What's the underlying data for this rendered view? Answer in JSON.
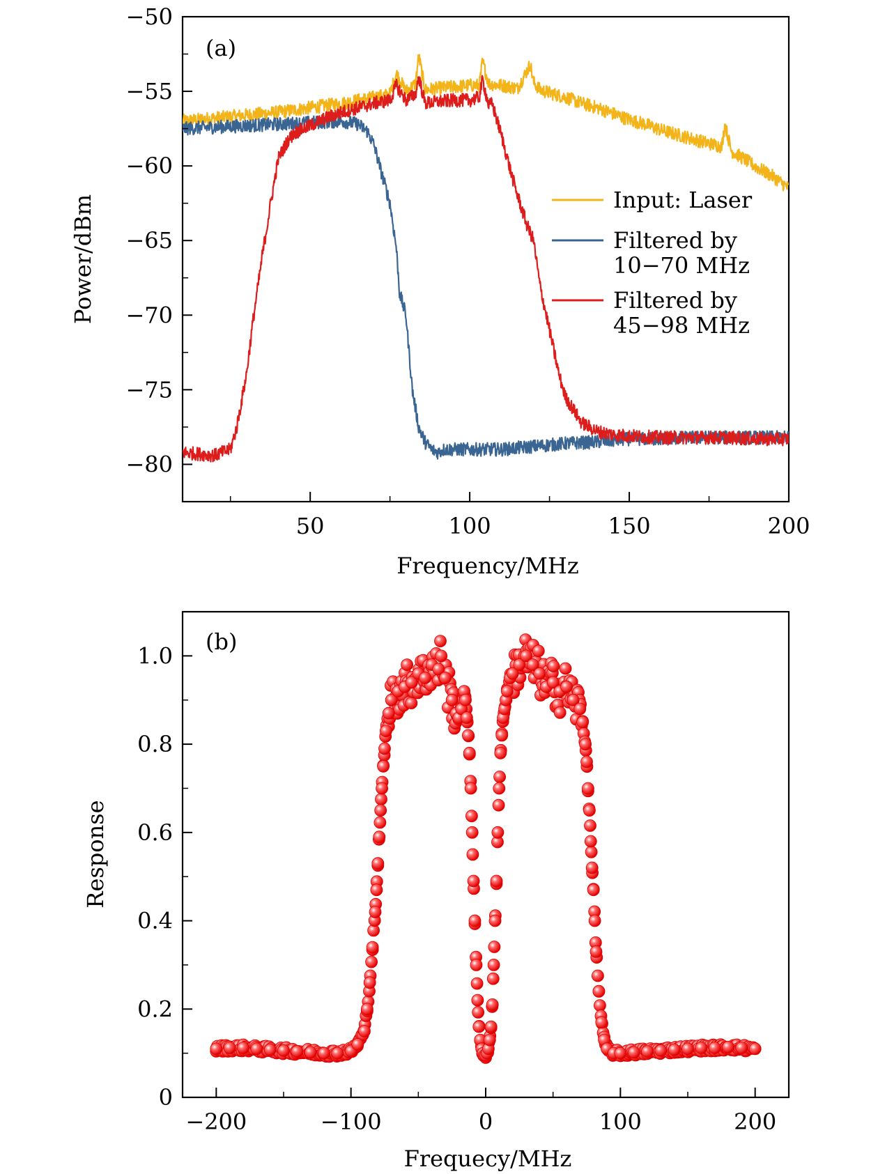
{
  "chart_data": [
    {
      "type": "line",
      "panel_label": "(a)",
      "xlabel": "Frequency/MHz",
      "ylabel": "Power/dBm",
      "xlim": [
        10,
        200
      ],
      "ylim": [
        -82.5,
        -50
      ],
      "xticks": [
        50,
        100,
        150,
        200
      ],
      "xtick_labels": [
        "50",
        "100",
        "150",
        "200"
      ],
      "yticks": [
        -80,
        -75,
        -70,
        -65,
        -60,
        -55,
        -50
      ],
      "ytick_labels": [
        "−80",
        "−75",
        "−70",
        "−65",
        "−60",
        "−55",
        "−50"
      ],
      "legend_position": "right-center",
      "series": [
        {
          "name": "Input: Laser",
          "color": "#f2b418",
          "x": [
            10,
            20,
            30,
            40,
            50,
            60,
            70,
            75,
            77,
            80,
            83,
            84,
            86,
            90,
            95,
            100,
            103,
            104,
            106,
            110,
            115,
            119,
            120,
            122,
            125,
            130,
            135,
            140,
            145,
            150,
            155,
            160,
            165,
            170,
            175,
            179,
            180,
            182,
            185,
            190,
            195,
            200
          ],
          "y": [
            -57,
            -56.8,
            -56.6,
            -56.4,
            -56.1,
            -55.8,
            -55.4,
            -55.2,
            -53.8,
            -55,
            -54.5,
            -52.6,
            -54.9,
            -54.8,
            -54.7,
            -54.6,
            -54.6,
            -53.0,
            -54.5,
            -54.6,
            -54.8,
            -53.2,
            -54.4,
            -54.9,
            -55.1,
            -55.4,
            -55.8,
            -56.1,
            -56.5,
            -56.9,
            -57.2,
            -57.6,
            -57.9,
            -58.2,
            -58.5,
            -58.7,
            -57.2,
            -59.0,
            -59.4,
            -60.1,
            -60.7,
            -61.5
          ]
        },
        {
          "name": "Filtered by 10−70 MHz",
          "color": "#3a6592",
          "x": [
            10,
            20,
            30,
            40,
            50,
            60,
            65,
            68,
            70,
            72,
            75,
            77,
            78,
            80,
            81,
            82,
            84,
            86,
            88,
            90,
            92,
            95,
            100,
            110,
            120,
            130,
            140,
            150,
            160,
            170,
            180,
            190,
            200
          ],
          "y": [
            -57.5,
            -57.4,
            -57.3,
            -57.2,
            -57.1,
            -57.0,
            -57.2,
            -57.7,
            -58.6,
            -60.2,
            -62.5,
            -65.5,
            -68.5,
            -70.0,
            -72.5,
            -75.0,
            -77.5,
            -78.5,
            -79.0,
            -79.2,
            -79.0,
            -79.0,
            -79.0,
            -79.0,
            -78.8,
            -78.6,
            -78.5,
            -78.3,
            -78.3,
            -78.2,
            -78.2,
            -78.2,
            -78.2
          ]
        },
        {
          "name": "Filtered by 45−98 MHz",
          "color": "#dd1c1c",
          "x": [
            10,
            15,
            20,
            25,
            27,
            30,
            32,
            35,
            38,
            40,
            43,
            45,
            50,
            55,
            60,
            65,
            70,
            75,
            77,
            80,
            83,
            84,
            86,
            90,
            95,
            100,
            103,
            104,
            106,
            107,
            110,
            113,
            115,
            118,
            120,
            122,
            125,
            128,
            130,
            133,
            135,
            140,
            145,
            150,
            160,
            170,
            180,
            190,
            200
          ],
          "y": [
            -79.2,
            -79.3,
            -79.4,
            -79.0,
            -77.5,
            -74.0,
            -70.5,
            -66.0,
            -62.0,
            -59.5,
            -58.3,
            -57.8,
            -57.3,
            -56.8,
            -56.4,
            -56.1,
            -55.8,
            -55.6,
            -54.6,
            -55.6,
            -55.2,
            -54.0,
            -55.8,
            -55.7,
            -55.6,
            -55.6,
            -55.4,
            -54.2,
            -56.0,
            -55.8,
            -58.0,
            -60.5,
            -62.0,
            -64.0,
            -65.0,
            -68.0,
            -71.0,
            -74.0,
            -75.5,
            -76.5,
            -77.2,
            -77.8,
            -78.0,
            -78.1,
            -78.2,
            -78.2,
            -78.2,
            -78.3,
            -78.3
          ]
        }
      ]
    },
    {
      "type": "scatter",
      "panel_label": "(b)",
      "xlabel": "Frequecy/MHz",
      "ylabel": "Response",
      "xlim": [
        -225,
        225
      ],
      "ylim": [
        0,
        1.1
      ],
      "xticks": [
        -200,
        -100,
        0,
        100,
        200
      ],
      "xtick_labels": [
        "−200",
        "−100",
        "0",
        "100",
        "200"
      ],
      "yticks": [
        0,
        0.2,
        0.4,
        0.6,
        0.8,
        1.0
      ],
      "ytick_labels": [
        "0",
        "0.2",
        "0.4",
        "0.6",
        "0.8",
        "1.0"
      ],
      "series": [
        {
          "name": "Response",
          "color": "#ff0000",
          "x": [
            -200,
            -190,
            -180,
            -170,
            -160,
            -150,
            -140,
            -130,
            -120,
            -110,
            -100,
            -95,
            -90,
            -88,
            -86,
            -84,
            -82,
            -81,
            -80,
            -79,
            -78,
            -77,
            -76,
            -75,
            -74,
            -72,
            -70,
            -65,
            -60,
            -55,
            -50,
            -45,
            -40,
            -35,
            -33,
            -30,
            -25,
            -22,
            -20,
            -18,
            -16,
            -15,
            -14,
            -13,
            -12,
            -11,
            -10,
            -9,
            -8,
            -7,
            -6,
            -5,
            -4,
            -3,
            -2,
            -1,
            0,
            1,
            2,
            3,
            4,
            5,
            6,
            7,
            8,
            9,
            10,
            11,
            12,
            13,
            14,
            15,
            16,
            18,
            20,
            25,
            30,
            35,
            40,
            45,
            50,
            55,
            60,
            65,
            70,
            72,
            74,
            75,
            76,
            77,
            78,
            79,
            80,
            81,
            82,
            84,
            86,
            88,
            90,
            95,
            100,
            110,
            120,
            130,
            140,
            150,
            160,
            170,
            180,
            190,
            200
          ],
          "y": [
            0.11,
            0.112,
            0.112,
            0.11,
            0.108,
            0.106,
            0.104,
            0.102,
            0.1,
            0.1,
            0.105,
            0.12,
            0.15,
            0.2,
            0.26,
            0.34,
            0.42,
            0.47,
            0.53,
            0.59,
            0.65,
            0.7,
            0.75,
            0.79,
            0.83,
            0.87,
            0.9,
            0.92,
            0.93,
            0.94,
            0.96,
            0.95,
            0.98,
            0.97,
            1.0,
            0.95,
            0.9,
            0.87,
            0.86,
            0.88,
            0.92,
            0.9,
            0.86,
            0.82,
            0.78,
            0.7,
            0.6,
            0.49,
            0.4,
            0.3,
            0.22,
            0.16,
            0.13,
            0.11,
            0.1,
            0.095,
            0.095,
            0.1,
            0.11,
            0.13,
            0.16,
            0.21,
            0.3,
            0.4,
            0.49,
            0.6,
            0.7,
            0.78,
            0.82,
            0.86,
            0.88,
            0.9,
            0.92,
            0.95,
            0.96,
            0.98,
            1.0,
            0.98,
            0.96,
            0.93,
            0.94,
            0.92,
            0.93,
            0.9,
            0.88,
            0.85,
            0.8,
            0.76,
            0.7,
            0.65,
            0.58,
            0.52,
            0.47,
            0.4,
            0.33,
            0.24,
            0.17,
            0.13,
            0.11,
            0.1,
            0.1,
            0.102,
            0.104,
            0.106,
            0.108,
            0.11,
            0.112,
            0.112,
            0.114,
            0.112,
            0.11
          ]
        }
      ]
    }
  ]
}
